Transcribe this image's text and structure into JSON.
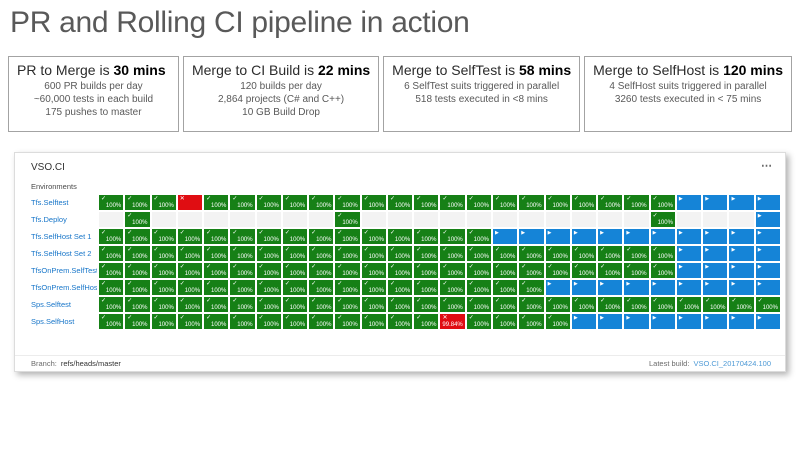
{
  "title": "PR and Rolling CI pipeline in action",
  "stats": [
    {
      "name": "pr-to-merge",
      "title_prefix": "PR to Merge is ",
      "title_value": "30 mins",
      "lines": [
        "600 PR builds per day",
        "~60,000 tests in each build",
        "175 pushes to master"
      ]
    },
    {
      "name": "merge-to-ci-build",
      "title_prefix": "Merge to CI Build is ",
      "title_value": "22 mins",
      "lines": [
        "120 builds per day",
        "2,864 projects (C# and C++)",
        "10 GB Build Drop"
      ]
    },
    {
      "name": "merge-to-selftest",
      "title_prefix": "Merge to SelfTest is ",
      "title_value": "58 mins",
      "lines": [
        "6 SelfTest suits triggered in parallel",
        "518 tests executed in <8 mins"
      ]
    },
    {
      "name": "merge-to-selfhost",
      "title_prefix": "Merge to SelfHost is ",
      "title_value": "120 mins",
      "lines": [
        "4 SelfHost suits triggered in parallel",
        "3260 tests executed in < 75 mins"
      ]
    }
  ],
  "dashboard": {
    "title": "VSO.CI",
    "environments_label": "Environments",
    "columns": 26,
    "default_success_pct": "100%",
    "rows": [
      {
        "label": "Tfs.Selftest",
        "cells": [
          "s",
          "s",
          "s",
          "f",
          "s",
          "s",
          "s",
          "s",
          "s",
          "s",
          "s",
          "s",
          "s",
          "s",
          "s",
          "s",
          "s",
          "s",
          "s",
          "s",
          "s",
          "s",
          "p",
          "p",
          "p",
          "p"
        ]
      },
      {
        "label": "Tfs.Deploy",
        "cells": [
          "e",
          "s",
          "e",
          "e",
          "e",
          "e",
          "e",
          "e",
          "e",
          "s",
          "e",
          "e",
          "e",
          "e",
          "e",
          "e",
          "e",
          "e",
          "e",
          "e",
          "e",
          "s",
          "e",
          "e",
          "e",
          "p"
        ]
      },
      {
        "label": "Tfs.SelfHost Set 1",
        "cells": [
          "s",
          "s",
          "s",
          "s",
          "s",
          "s",
          "s",
          "s",
          "s",
          "s",
          "s",
          "s",
          "s",
          "s",
          "s",
          "p",
          "p",
          "p",
          "p",
          "p",
          "p",
          "p",
          "p",
          "p",
          "p",
          "p"
        ]
      },
      {
        "label": "Tfs.SelfHost Set 2",
        "cells": [
          "s",
          "s",
          "s",
          "s",
          "s",
          "s",
          "s",
          "s",
          "s",
          "s",
          "s",
          "s",
          "s",
          "s",
          "s",
          "s",
          "s",
          "s",
          "s",
          "s",
          "s",
          "s",
          "p",
          "p",
          "p",
          "p"
        ]
      },
      {
        "label": "TfsOnPrem.SelfTest",
        "cells": [
          "s",
          "s",
          "s",
          "s",
          "s",
          "s",
          "s",
          "s",
          "s",
          "s",
          "s",
          "s",
          "s",
          "s",
          "s",
          "s",
          "s",
          "s",
          "s",
          "s",
          "s",
          "s",
          "p",
          "p",
          "p",
          "p"
        ]
      },
      {
        "label": "TfsOnPrem.SelfHost",
        "cells": [
          "s",
          "s",
          "s",
          "s",
          "s",
          "s",
          "s",
          "s",
          "s",
          "s",
          "s",
          "s",
          "s",
          "s",
          "s",
          "s",
          "s",
          "p",
          "p",
          "p",
          "p",
          "p",
          "p",
          "p",
          "p",
          "p"
        ]
      },
      {
        "label": "Sps.Selftest",
        "cells": [
          "s",
          "s",
          "s",
          "s",
          "s",
          "s",
          "s",
          "s",
          "s",
          "s",
          "s",
          "s",
          "s",
          "s",
          "s",
          "s",
          "s",
          "s",
          "s",
          "s",
          "s",
          "s",
          "s",
          "s",
          "s",
          "s"
        ]
      },
      {
        "label": "Sps.SelfHost",
        "cells": [
          "s",
          "s",
          "s",
          "s",
          "s",
          "s",
          "s",
          "s",
          "s",
          "s",
          "s",
          "s",
          "s",
          "f:99.84%",
          "s",
          "s",
          "s",
          "s",
          "p",
          "p",
          "p",
          "p",
          "p",
          "p",
          "p",
          "p"
        ]
      }
    ],
    "footer": {
      "branch_label": "Branch:",
      "branch_value": "refs/heads/master",
      "latest_build_label": "Latest build:",
      "latest_build_value": "VSO.CI_20170424.100"
    }
  },
  "cell_states": {
    "s": "success",
    "f": "failed",
    "p": "in-progress",
    "e": "empty"
  },
  "icons": {
    "more": "⋯",
    "check": "✓",
    "fail": "✕",
    "play": "▶"
  },
  "colors": {
    "success": "#168016",
    "failed": "#e00d12",
    "in_progress": "#1584d7",
    "empty": "#f3f3f3",
    "row_label_link": "#1876c9",
    "build_link": "#4e9ad6",
    "title_text": "#595959"
  }
}
